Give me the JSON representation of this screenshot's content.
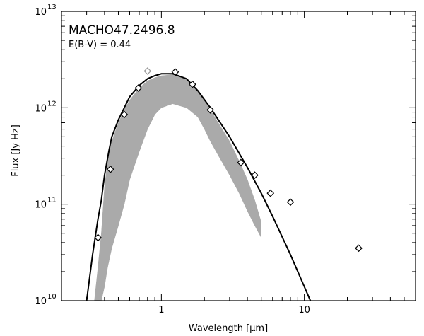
{
  "chart_data": {
    "type": "scatter",
    "title": "MACHO47.2496.8",
    "subtitle": "E(B-V) = 0.44",
    "xlabel": "Wavelength [μm]",
    "ylabel": "Flux [Jy Hz]",
    "xscale": "log",
    "yscale": "log",
    "xlim": [
      0.2,
      60
    ],
    "ylim": [
      10000000000.0,
      10000000000000.0
    ],
    "x_ticks": [
      {
        "value": 1,
        "label": "1"
      },
      {
        "value": 10,
        "label": "10"
      }
    ],
    "y_ticks": [
      {
        "value": 10000000000.0,
        "base": "10",
        "exp": "10"
      },
      {
        "value": 100000000000.0,
        "base": "10",
        "exp": "11"
      },
      {
        "value": 1000000000000.0,
        "base": "10",
        "exp": "12"
      },
      {
        "value": 10000000000000.0,
        "base": "10",
        "exp": "13"
      }
    ],
    "grid": false,
    "series": [
      {
        "kind": "model_curve",
        "color": "#000000",
        "x": [
          0.3,
          0.33,
          0.36,
          0.38,
          0.4,
          0.43,
          0.45,
          0.5,
          0.55,
          0.6,
          0.7,
          0.8,
          0.9,
          1.0,
          1.2,
          1.5,
          1.8,
          2.2,
          3.0,
          4.0,
          5.0,
          6.0,
          8.0,
          10.0,
          12.0
        ],
        "y": [
          10000000000.0,
          30000000000.0,
          70000000000.0,
          110000000000.0,
          200000000000.0,
          360000000000.0,
          500000000000.0,
          750000000000.0,
          1000000000000.0,
          1300000000000.0,
          1700000000000.0,
          2000000000000.0,
          2150000000000.0,
          2250000000000.0,
          2250000000000.0,
          2000000000000.0,
          1500000000000.0,
          1000000000000.0,
          500000000000.0,
          240000000000.0,
          130000000000.0,
          75000000000.0,
          30000000000.0,
          14000000000.0,
          7500000000.0
        ]
      },
      {
        "kind": "stellar_spectrum",
        "color": "#aaaaaa",
        "x": [
          0.34,
          0.36,
          0.38,
          0.4,
          0.42,
          0.45,
          0.5,
          0.55,
          0.6,
          0.7,
          0.8,
          0.9,
          1.0,
          1.2,
          1.5,
          1.8,
          2.0,
          2.2,
          2.5,
          3.0,
          3.5,
          4.0,
          4.5,
          5.0
        ],
        "y_upper": [
          10000000000.0,
          22000000000.0,
          50000000000.0,
          150000000000.0,
          280000000000.0,
          450000000000.0,
          700000000000.0,
          950000000000.0,
          1200000000000.0,
          1600000000000.0,
          1900000000000.0,
          2050000000000.0,
          2150000000000.0,
          2200000000000.0,
          2000000000000.0,
          1500000000000.0,
          1200000000000.0,
          950000000000.0,
          700000000000.0,
          450000000000.0,
          280000000000.0,
          180000000000.0,
          110000000000.0,
          65000000000.0
        ],
        "y_lower": [
          10000000000.0,
          10000000000.0,
          10000000000.0,
          14000000000.0,
          22000000000.0,
          35000000000.0,
          60000000000.0,
          100000000000.0,
          180000000000.0,
          350000000000.0,
          600000000000.0,
          850000000000.0,
          1000000000000.0,
          1100000000000.0,
          1000000000000.0,
          800000000000.0,
          600000000000.0,
          450000000000.0,
          320000000000.0,
          200000000000.0,
          130000000000.0,
          85000000000.0,
          60000000000.0,
          45000000000.0
        ]
      },
      {
        "kind": "photometry",
        "marker": "diamond",
        "color": "#000000",
        "x": [
          0.36,
          0.44,
          0.55,
          0.69,
          1.25,
          1.65,
          2.2,
          3.6,
          4.5,
          5.8,
          8.0,
          24.0
        ],
        "y": [
          45000000000.0,
          230000000000.0,
          850000000000.0,
          1600000000000.0,
          2350000000000.0,
          1750000000000.0,
          950000000000.0,
          270000000000.0,
          200000000000.0,
          130000000000.0,
          105000000000.0,
          35000000000.0
        ]
      },
      {
        "kind": "photometry_gray",
        "marker": "diamond",
        "color": "#999999",
        "x": [
          0.8
        ],
        "y": [
          2400000000000.0
        ]
      }
    ]
  }
}
